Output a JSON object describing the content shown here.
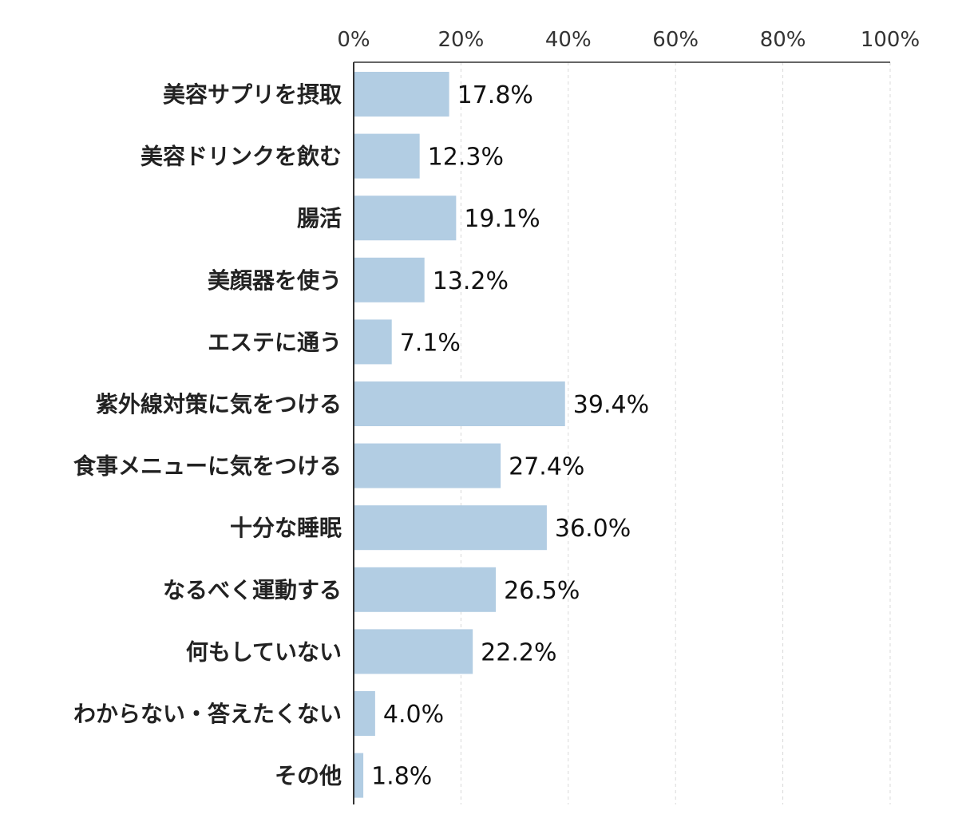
{
  "chart_data": {
    "type": "bar",
    "orientation": "horizontal",
    "title": "",
    "xlabel": "",
    "ylabel": "",
    "xlim": [
      0,
      100
    ],
    "x_ticks": [
      0,
      20,
      40,
      60,
      80,
      100
    ],
    "x_tick_labels": [
      "0%",
      "20%",
      "40%",
      "60%",
      "80%",
      "100%"
    ],
    "x_axis_position": "top",
    "grid": "vertical dashed",
    "bar_color": "#b2cde3",
    "categories": [
      "美容サプリを摂取",
      "美容ドリンクを飲む",
      "腸活",
      "美顔器を使う",
      "エステに通う",
      "紫外線対策に気をつける",
      "食事メニューに気をつける",
      "十分な睡眠",
      "なるべく運動する",
      "何もしていない",
      "わからない・答えたくない",
      "その他"
    ],
    "values": [
      17.8,
      12.3,
      19.1,
      13.2,
      7.1,
      39.4,
      27.4,
      36.0,
      26.5,
      22.2,
      4.0,
      1.8
    ],
    "value_labels": [
      "17.8%",
      "12.3%",
      "19.1%",
      "13.2%",
      "7.1%",
      "39.4%",
      "27.4%",
      "36.0%",
      "26.5%",
      "22.2%",
      "4.0%",
      "1.8%"
    ]
  }
}
